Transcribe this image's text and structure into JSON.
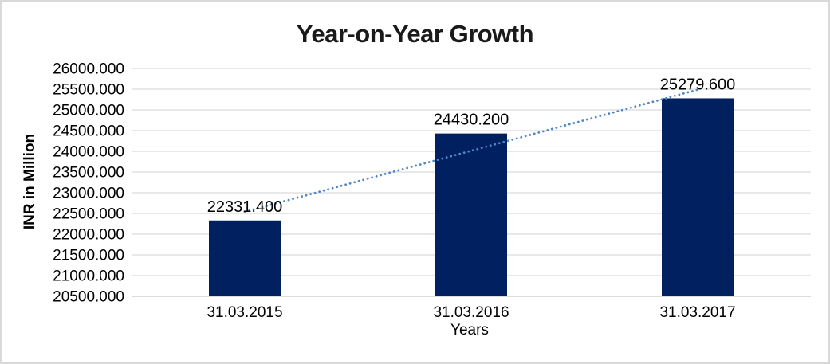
{
  "window": {
    "background": "#FFFFFF",
    "border_color": "#D9D9D9"
  },
  "chart_data": {
    "type": "bar",
    "title": "Year-on-Year Growth",
    "categories": [
      "31.03.2015",
      "31.03.2016",
      "31.03.2017"
    ],
    "values": [
      22331.4,
      24430.2,
      25279.6
    ],
    "data_labels": [
      "22331.400",
      "24430.200",
      "25279.600"
    ],
    "xlabel": "Years",
    "ylabel": "INR in Million",
    "ylim": [
      20500,
      26000
    ],
    "ytick_step": 500,
    "yticks": [
      "20500.000",
      "21000.000",
      "21500.000",
      "22000.000",
      "22500.000",
      "23000.000",
      "23500.000",
      "24000.000",
      "24500.000",
      "25000.000",
      "25500.000",
      "26000.000"
    ],
    "grid": true,
    "legend": "none",
    "trendline": {
      "type": "linear",
      "style": "dotted",
      "color": "#4F86C6"
    },
    "colors": {
      "bar": "#002060",
      "gridline": "#D9D9D9",
      "axis_line": "#C8C8C8",
      "text": "#000000",
      "title_text": "#1A1A1A"
    }
  }
}
